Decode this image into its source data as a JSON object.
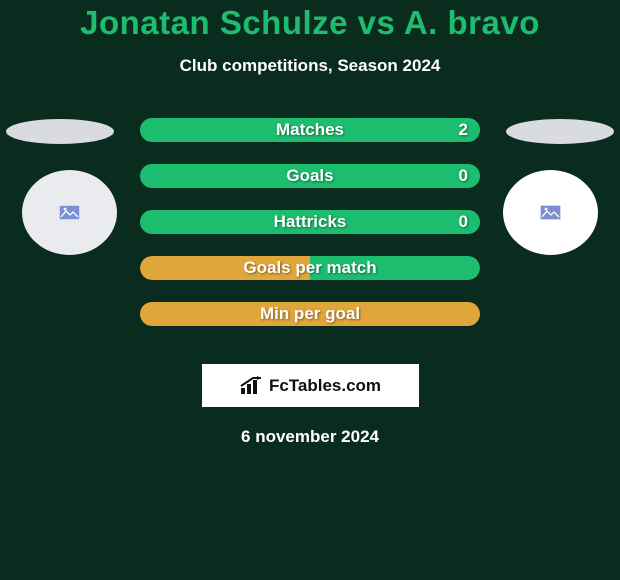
{
  "background_color": "#0a2c1e",
  "title": {
    "text": "Jonatan Schulze vs A. bravo",
    "color": "#1cbd6f",
    "fontsize": 33
  },
  "subtitle": {
    "text": "Club competitions, Season 2024",
    "color": "#ffffff",
    "fontsize": 17
  },
  "players": {
    "left": {
      "ellipse_color": "#d9dbe0",
      "circle_color": "#e9ebef",
      "badge_bg": "#7c8fd1",
      "badge_fg": "#ffffff"
    },
    "right": {
      "ellipse_color": "#d9dbe0",
      "circle_color": "#ffffff",
      "badge_bg": "#7c8fd1",
      "badge_fg": "#ffffff"
    }
  },
  "bars": {
    "label_color": "#ffffff",
    "value_color": "#ffffff",
    "height": 24,
    "gap": 22,
    "border_radius": 12,
    "fontsize": 17,
    "items": [
      {
        "label": "Matches",
        "left": "",
        "right": "2",
        "fill_left": "#1cbd6f",
        "fill_right": "#1cbd6f",
        "split": false
      },
      {
        "label": "Goals",
        "left": "",
        "right": "0",
        "fill_left": "#1cbd6f",
        "fill_right": "#1cbd6f",
        "split": false
      },
      {
        "label": "Hattricks",
        "left": "",
        "right": "0",
        "fill_left": "#1cbd6f",
        "fill_right": "#1cbd6f",
        "split": false
      },
      {
        "label": "Goals per match",
        "left": "",
        "right": "",
        "fill_left": "#e0a63a",
        "fill_right": "#1cbd6f",
        "split": true
      },
      {
        "label": "Min per goal",
        "left": "",
        "right": "",
        "fill_left": "#e0a63a",
        "fill_right": "#e0a63a",
        "split": false
      }
    ]
  },
  "logo": {
    "box_bg": "#ffffff",
    "text": "FcTables.com",
    "text_color": "#111111",
    "icon_color": "#111111"
  },
  "date": {
    "text": "6 november 2024",
    "color": "#ffffff",
    "fontsize": 17
  }
}
